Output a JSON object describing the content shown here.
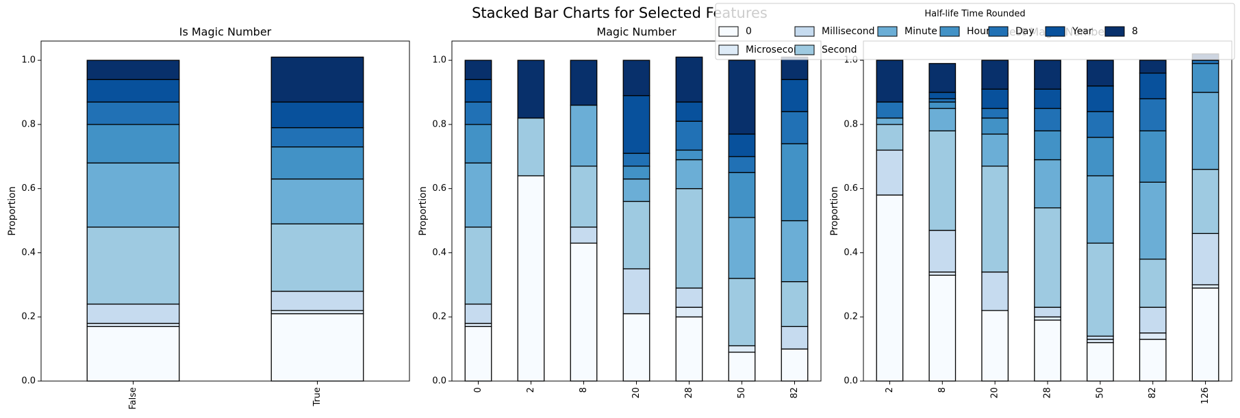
{
  "title": "Stacked Bar Charts for Selected Features",
  "legend": {
    "title": "Half-life Time Rounded",
    "placement": "top-right",
    "entries": [
      "0",
      "Microsecond",
      "Millisecond",
      "Second",
      "Minute",
      "Hour",
      "Day",
      "Year",
      "8"
    ]
  },
  "colors": [
    "#f7fbff",
    "#deebf7",
    "#c6dbef",
    "#9ecae1",
    "#6baed6",
    "#4292c6",
    "#2171b5",
    "#08519c",
    "#08306b"
  ],
  "chart_data": [
    {
      "type": "bar",
      "stacked": true,
      "title": "Is Magic Number",
      "ylabel": "Proportion",
      "xlabel": "",
      "ylim": [
        0,
        1.06
      ],
      "yticks": [
        "0.0",
        "0.2",
        "0.4",
        "0.6",
        "0.8",
        "1.0"
      ],
      "categories": [
        "False",
        "True"
      ],
      "series": [
        {
          "name": "0",
          "values": [
            0.17,
            0.21
          ]
        },
        {
          "name": "Microsecond",
          "values": [
            0.01,
            0.01
          ]
        },
        {
          "name": "Millisecond",
          "values": [
            0.06,
            0.06
          ]
        },
        {
          "name": "Second",
          "values": [
            0.24,
            0.21
          ]
        },
        {
          "name": "Minute",
          "values": [
            0.2,
            0.14
          ]
        },
        {
          "name": "Hour",
          "values": [
            0.12,
            0.1
          ]
        },
        {
          "name": "Day",
          "values": [
            0.07,
            0.06
          ]
        },
        {
          "name": "Year",
          "values": [
            0.07,
            0.08
          ]
        },
        {
          "name": "8",
          "values": [
            0.06,
            0.14
          ]
        }
      ]
    },
    {
      "type": "bar",
      "stacked": true,
      "title": "Magic Number",
      "ylabel": "Proportion",
      "xlabel": "",
      "ylim": [
        0,
        1.06
      ],
      "yticks": [
        "0.0",
        "0.2",
        "0.4",
        "0.6",
        "0.8",
        "1.0"
      ],
      "categories": [
        "0",
        "2",
        "8",
        "20",
        "28",
        "50",
        "82"
      ],
      "series": [
        {
          "name": "0",
          "values": [
            0.17,
            0.64,
            0.43,
            0.21,
            0.2,
            0.09,
            0.1
          ]
        },
        {
          "name": "Microsecond",
          "values": [
            0.01,
            0.0,
            0.0,
            0.0,
            0.03,
            0.02,
            0.0
          ]
        },
        {
          "name": "Millisecond",
          "values": [
            0.06,
            0.0,
            0.05,
            0.14,
            0.06,
            0.0,
            0.07
          ]
        },
        {
          "name": "Second",
          "values": [
            0.24,
            0.18,
            0.19,
            0.21,
            0.31,
            0.21,
            0.14
          ]
        },
        {
          "name": "Minute",
          "values": [
            0.2,
            0.0,
            0.19,
            0.07,
            0.09,
            0.19,
            0.19
          ]
        },
        {
          "name": "Hour",
          "values": [
            0.12,
            0.0,
            0.0,
            0.04,
            0.03,
            0.14,
            0.24
          ]
        },
        {
          "name": "Day",
          "values": [
            0.07,
            0.0,
            0.0,
            0.04,
            0.09,
            0.05,
            0.1
          ]
        },
        {
          "name": "Year",
          "values": [
            0.07,
            0.0,
            0.0,
            0.18,
            0.06,
            0.07,
            0.1
          ]
        },
        {
          "name": "8",
          "values": [
            0.06,
            0.18,
            0.14,
            0.11,
            0.14,
            0.23,
            0.07
          ]
        }
      ]
    },
    {
      "type": "bar",
      "stacked": true,
      "title": "Closest Magic Number",
      "ylabel": "Proportion",
      "xlabel": "",
      "ylim": [
        0,
        1.06
      ],
      "yticks": [
        "0.0",
        "0.2",
        "0.4",
        "0.6",
        "0.8",
        "1.0"
      ],
      "categories": [
        "2",
        "8",
        "20",
        "28",
        "50",
        "82",
        "126"
      ],
      "series": [
        {
          "name": "0",
          "values": [
            0.58,
            0.33,
            0.22,
            0.19,
            0.12,
            0.13,
            0.29
          ]
        },
        {
          "name": "Microsecond",
          "values": [
            0.0,
            0.01,
            0.0,
            0.01,
            0.01,
            0.02,
            0.01
          ]
        },
        {
          "name": "Millisecond",
          "values": [
            0.14,
            0.13,
            0.12,
            0.03,
            0.01,
            0.08,
            0.16
          ]
        },
        {
          "name": "Second",
          "values": [
            0.08,
            0.31,
            0.33,
            0.31,
            0.29,
            0.15,
            0.2
          ]
        },
        {
          "name": "Minute",
          "values": [
            0.02,
            0.07,
            0.1,
            0.15,
            0.21,
            0.24,
            0.24
          ]
        },
        {
          "name": "Hour",
          "values": [
            0.0,
            0.02,
            0.05,
            0.09,
            0.12,
            0.16,
            0.09
          ]
        },
        {
          "name": "Day",
          "values": [
            0.05,
            0.01,
            0.03,
            0.07,
            0.08,
            0.1,
            0.01
          ]
        },
        {
          "name": "Year",
          "values": [
            0.0,
            0.02,
            0.06,
            0.06,
            0.08,
            0.08,
            0.0
          ]
        },
        {
          "name": "8",
          "values": [
            0.13,
            0.09,
            0.09,
            0.09,
            0.08,
            0.04,
            0.02
          ]
        }
      ]
    }
  ]
}
